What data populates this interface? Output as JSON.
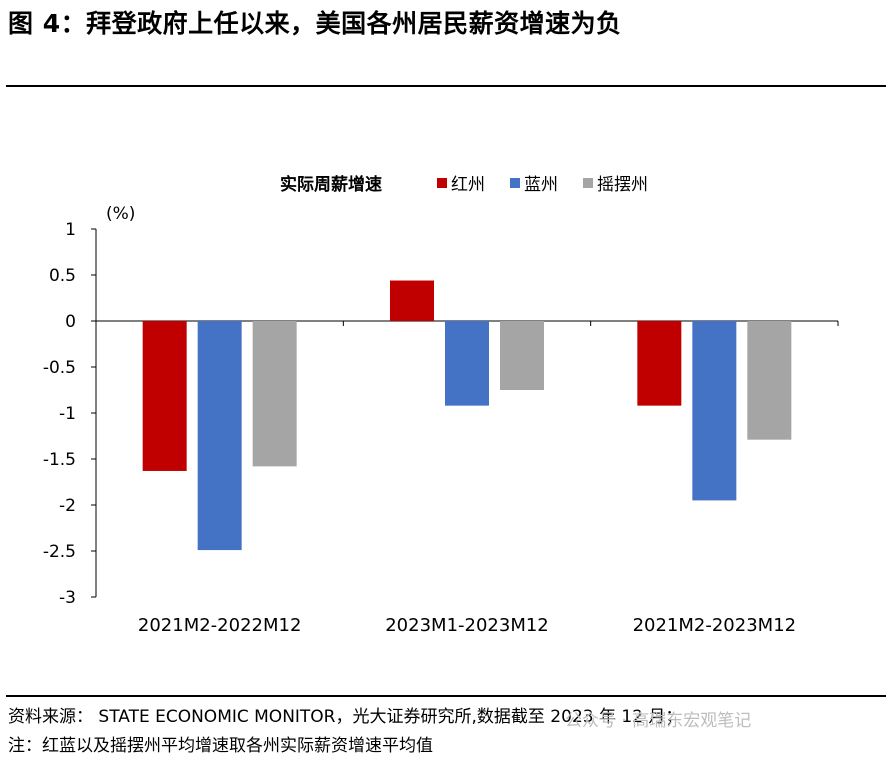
{
  "page": {
    "title": "图 4：拜登政府上任以来，美国各州居民薪资增速为负",
    "source": "资料来源：  STATE ECONOMIC MONITOR，光大证券研究所,数据截至 2023 年 12 月；",
    "note": "注：红蓝以及摇摆州平均增速取各州实际薪资增速平均值",
    "watermark": "公众号 · 高瑞东宏观笔记"
  },
  "chart_data": {
    "type": "bar",
    "title": "实际周薪增速",
    "ylabel": "(%)",
    "ylim": [
      -3,
      1
    ],
    "yticks": [
      1,
      0.5,
      0,
      -0.5,
      -1,
      -1.5,
      -2,
      -2.5,
      -3
    ],
    "ytick_labels": [
      "1",
      "0.5",
      "0",
      "-0.5",
      "-1",
      "-1.5",
      "-2",
      "-2.5",
      "-3"
    ],
    "categories": [
      "2021M2-2022M12",
      "2023M1-2023M12",
      "2021M2-2023M12"
    ],
    "series": [
      {
        "name": "红州",
        "color": "#c00000",
        "values": [
          -1.63,
          0.44,
          -0.92
        ]
      },
      {
        "name": "蓝州",
        "color": "#4472c4",
        "values": [
          -2.49,
          -0.92,
          -1.95
        ]
      },
      {
        "name": "摇摆州",
        "color": "#a5a5a5",
        "values": [
          -1.58,
          -0.75,
          -1.29
        ]
      }
    ],
    "grid": false,
    "legend": "top"
  }
}
